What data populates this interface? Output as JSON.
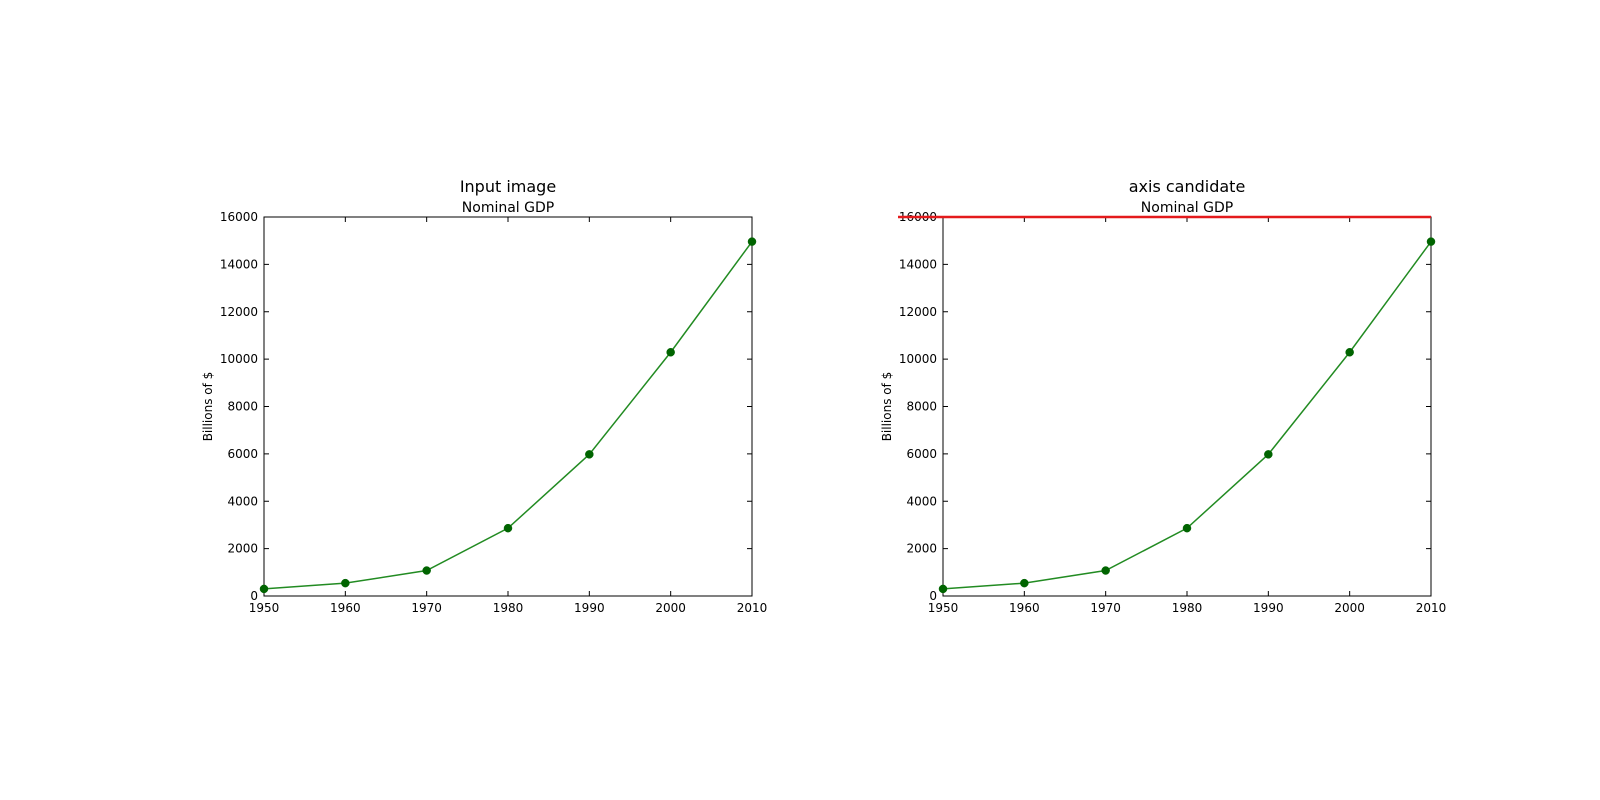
{
  "colors": {
    "line": "#228b22",
    "marker_fill": "#006400",
    "axis": "#000000",
    "highlight": "#e41a1c"
  },
  "chart_data": [
    {
      "type": "line",
      "panel_title": "Input image",
      "title": "Nominal GDP",
      "xlabel": "",
      "ylabel": "Billions of $",
      "x": [
        1950,
        1960,
        1970,
        1980,
        1990,
        2000,
        2010
      ],
      "series": [
        {
          "values": [
            300,
            543,
            1075,
            2863,
            5980,
            10290,
            14960
          ]
        }
      ],
      "xlim": [
        1950,
        2010
      ],
      "ylim": [
        0,
        16000
      ],
      "xticks": [
        "1950",
        "1960",
        "1970",
        "1980",
        "1990",
        "2000",
        "2010"
      ],
      "yticks": [
        "0",
        "2000",
        "4000",
        "6000",
        "8000",
        "10000",
        "12000",
        "14000",
        "16000"
      ],
      "grid": false,
      "marker": "circle",
      "highlight_top_axis": false
    },
    {
      "type": "line",
      "panel_title": "axis candidate",
      "title": "Nominal GDP",
      "xlabel": "",
      "ylabel": "Billions of $",
      "x": [
        1950,
        1960,
        1970,
        1980,
        1990,
        2000,
        2010
      ],
      "series": [
        {
          "values": [
            300,
            543,
            1075,
            2863,
            5980,
            10290,
            14960
          ]
        }
      ],
      "xlim": [
        1950,
        2010
      ],
      "ylim": [
        0,
        16000
      ],
      "xticks": [
        "1950",
        "1960",
        "1970",
        "1980",
        "1990",
        "2000",
        "2010"
      ],
      "yticks": [
        "0",
        "2000",
        "4000",
        "6000",
        "8000",
        "10000",
        "12000",
        "14000",
        "16000"
      ],
      "grid": false,
      "marker": "circle",
      "highlight_top_axis": true
    }
  ]
}
